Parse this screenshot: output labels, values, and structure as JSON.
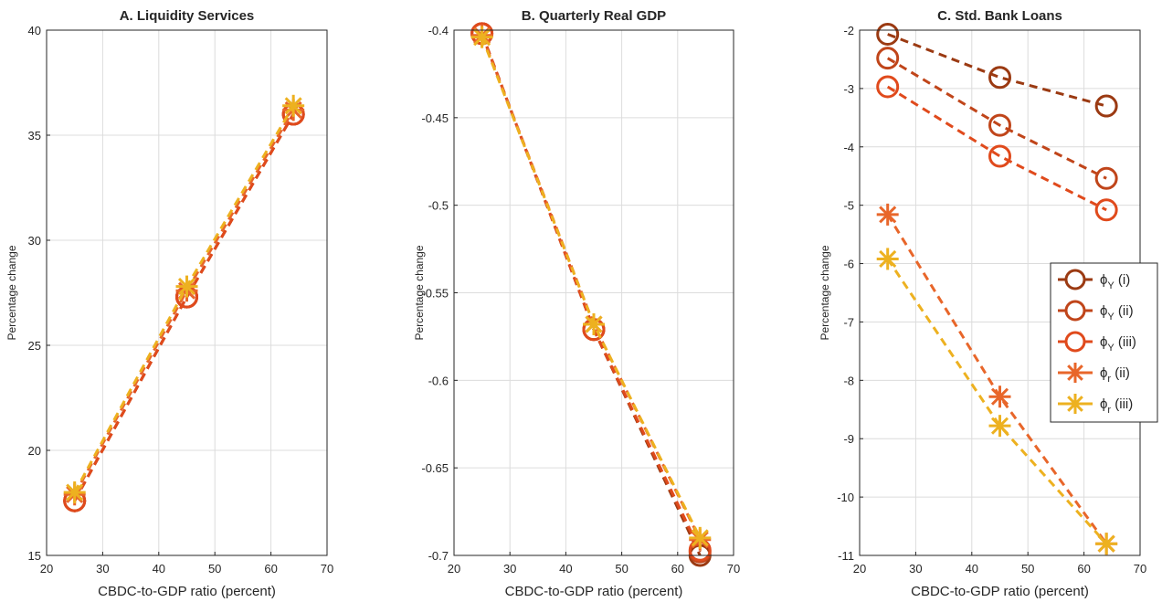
{
  "chart_data": [
    {
      "type": "line",
      "title": "A. Liquidity Services",
      "xlabel": "CBDC-to-GDP ratio (percent)",
      "ylabel": "Percentage change",
      "xlim": [
        20,
        70
      ],
      "ylim": [
        15,
        40
      ],
      "xticks": [
        20,
        30,
        40,
        50,
        60,
        70
      ],
      "yticks": [
        15,
        20,
        25,
        30,
        35,
        40
      ],
      "grid": true,
      "x": [
        25,
        45,
        64
      ],
      "series": [
        {
          "name": "ϕY (i)",
          "marker": "circle",
          "color": "#9B3A12",
          "values": [
            17.6,
            27.3,
            36.0
          ]
        },
        {
          "name": "ϕY (ii)",
          "marker": "circle",
          "color": "#C0451A",
          "values": [
            17.6,
            27.3,
            36.0
          ]
        },
        {
          "name": "ϕY (iii)",
          "marker": "circle",
          "color": "#E04A1C",
          "values": [
            17.6,
            27.3,
            36.0
          ]
        },
        {
          "name": "ϕr (ii)",
          "marker": "star",
          "color": "#E8662A",
          "values": [
            17.9,
            27.6,
            36.2
          ]
        },
        {
          "name": "ϕr (iii)",
          "marker": "star",
          "color": "#EDB120",
          "values": [
            18.0,
            27.8,
            36.4
          ]
        }
      ]
    },
    {
      "type": "line",
      "title": "B. Quarterly Real GDP",
      "xlabel": "CBDC-to-GDP ratio (percent)",
      "ylabel": "Percentage change",
      "xlim": [
        20,
        70
      ],
      "ylim": [
        -0.7,
        -0.4
      ],
      "xticks": [
        20,
        30,
        40,
        50,
        60,
        70
      ],
      "yticks": [
        -0.7,
        -0.65,
        -0.6,
        -0.55,
        -0.5,
        -0.45,
        -0.4
      ],
      "grid": true,
      "x": [
        25,
        45,
        64
      ],
      "series": [
        {
          "name": "ϕY (i)",
          "marker": "circle",
          "color": "#9B3A12",
          "values": [
            -0.402,
            -0.571,
            -0.7
          ]
        },
        {
          "name": "ϕY (ii)",
          "marker": "circle",
          "color": "#C0451A",
          "values": [
            -0.402,
            -0.571,
            -0.698
          ]
        },
        {
          "name": "ϕY (iii)",
          "marker": "circle",
          "color": "#E04A1C",
          "values": [
            -0.402,
            -0.571,
            -0.697
          ]
        },
        {
          "name": "ϕr (ii)",
          "marker": "star",
          "color": "#E8662A",
          "values": [
            -0.403,
            -0.568,
            -0.691
          ]
        },
        {
          "name": "ϕr (iii)",
          "marker": "star",
          "color": "#EDB120",
          "values": [
            -0.404,
            -0.568,
            -0.69
          ]
        }
      ]
    },
    {
      "type": "line",
      "title": "C. Std. Bank Loans",
      "xlabel": "CBDC-to-GDP ratio (percent)",
      "ylabel": "Percentage change",
      "xlim": [
        20,
        70
      ],
      "ylim": [
        -11,
        -2
      ],
      "xticks": [
        20,
        30,
        40,
        50,
        60,
        70
      ],
      "yticks": [
        -11,
        -10,
        -9,
        -8,
        -7,
        -6,
        -5,
        -4,
        -3,
        -2
      ],
      "grid": true,
      "legend_position": "east",
      "x": [
        25,
        45,
        64
      ],
      "series": [
        {
          "name": "ϕY (i)",
          "symbol": "ϕ",
          "sub": "Y",
          "suffix": " (i)",
          "marker": "circle",
          "color": "#9B3A12",
          "values": [
            -2.07,
            -2.81,
            -3.3
          ]
        },
        {
          "name": "ϕY (ii)",
          "symbol": "ϕ",
          "sub": "Y",
          "suffix": " (ii)",
          "marker": "circle",
          "color": "#C0451A",
          "values": [
            -2.48,
            -3.63,
            -4.54
          ]
        },
        {
          "name": "ϕY (iii)",
          "symbol": "ϕ",
          "sub": "Y",
          "suffix": " (iii)",
          "marker": "circle",
          "color": "#E04A1C",
          "values": [
            -2.97,
            -4.16,
            -5.08
          ]
        },
        {
          "name": "ϕr (ii)",
          "symbol": "ϕ",
          "sub": "r",
          "suffix": " (ii)",
          "marker": "star",
          "color": "#E8662A",
          "values": [
            -5.16,
            -8.28,
            -10.8
          ]
        },
        {
          "name": "ϕr (iii)",
          "symbol": "ϕ",
          "sub": "r",
          "suffix": " (iii)",
          "marker": "star",
          "color": "#EDB120",
          "values": [
            -5.92,
            -8.78,
            -10.8
          ]
        }
      ]
    }
  ]
}
